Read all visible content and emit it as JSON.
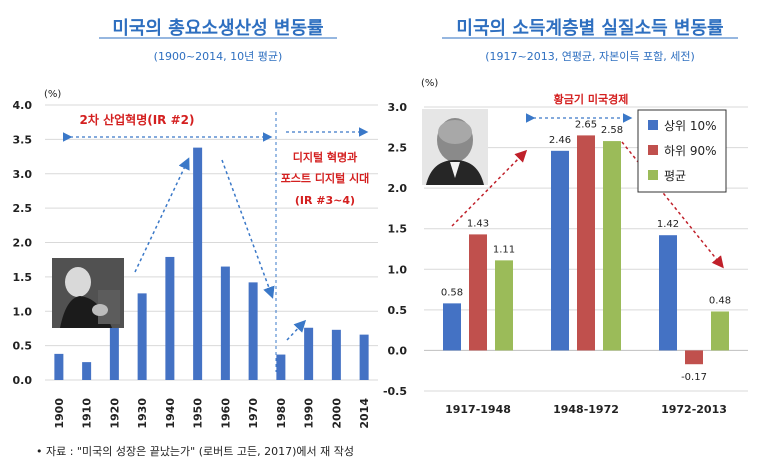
{
  "source_note": "• 자료 : \"미국의 성장은 끝났는가\" (로버트 고든, 2017)에서 재 작성",
  "chart_data": [
    {
      "type": "bar",
      "title": "미국의 총요소생산성 변동률",
      "subtitle": "(1900~2014, 10년 평균)",
      "ylabel": "(%)",
      "ylim": [
        0,
        4.0
      ],
      "yticks": [
        "0.0",
        "0.5",
        "1.0",
        "1.5",
        "2.0",
        "2.5",
        "3.0",
        "3.5",
        "4.0"
      ],
      "categories": [
        "1900",
        "1910",
        "1920",
        "1930",
        "1940",
        "1950",
        "1960",
        "1970",
        "1980",
        "1990",
        "2000",
        "2014"
      ],
      "values": [
        0.38,
        0.26,
        1.0,
        1.26,
        1.79,
        3.38,
        1.65,
        1.42,
        0.37,
        0.76,
        0.73,
        0.66
      ],
      "bar_color": "#4472c4",
      "grid": true,
      "annotations": [
        "2차 산업혁명(IR #2)",
        "디지털 혁명과",
        "포스트 디지털 시대",
        "(IR #3~4)"
      ]
    },
    {
      "type": "bar",
      "title": "미국의 소득계층별 실질소득 변동률",
      "subtitle": "(1917~2013, 연평균, 자본이득 포함, 세전)",
      "ylabel": "(%)",
      "ylim": [
        -0.5,
        3.0
      ],
      "yticks": [
        "-0.5",
        "0.0",
        "0.5",
        "1.0",
        "1.5",
        "2.0",
        "2.5",
        "3.0"
      ],
      "categories": [
        "1917-1948",
        "1948-1972",
        "1972-2013"
      ],
      "series": [
        {
          "name": "상위 10%",
          "color": "#4472c4",
          "values": [
            0.58,
            2.46,
            1.42
          ],
          "labels": [
            "0.58",
            "2.46",
            "1.42"
          ]
        },
        {
          "name": "하위 90%",
          "color": "#c0504d",
          "values": [
            1.43,
            2.65,
            -0.17
          ],
          "labels": [
            "1.43",
            "2.65",
            "-0.17"
          ]
        },
        {
          "name": "평균",
          "color": "#9bbb59",
          "values": [
            1.11,
            2.58,
            0.48
          ],
          "labels": [
            "1.11",
            "2.58",
            "0.48"
          ]
        }
      ],
      "grid": true,
      "legend": "top-right",
      "annotations": [
        "황금기 미국경제"
      ]
    }
  ]
}
